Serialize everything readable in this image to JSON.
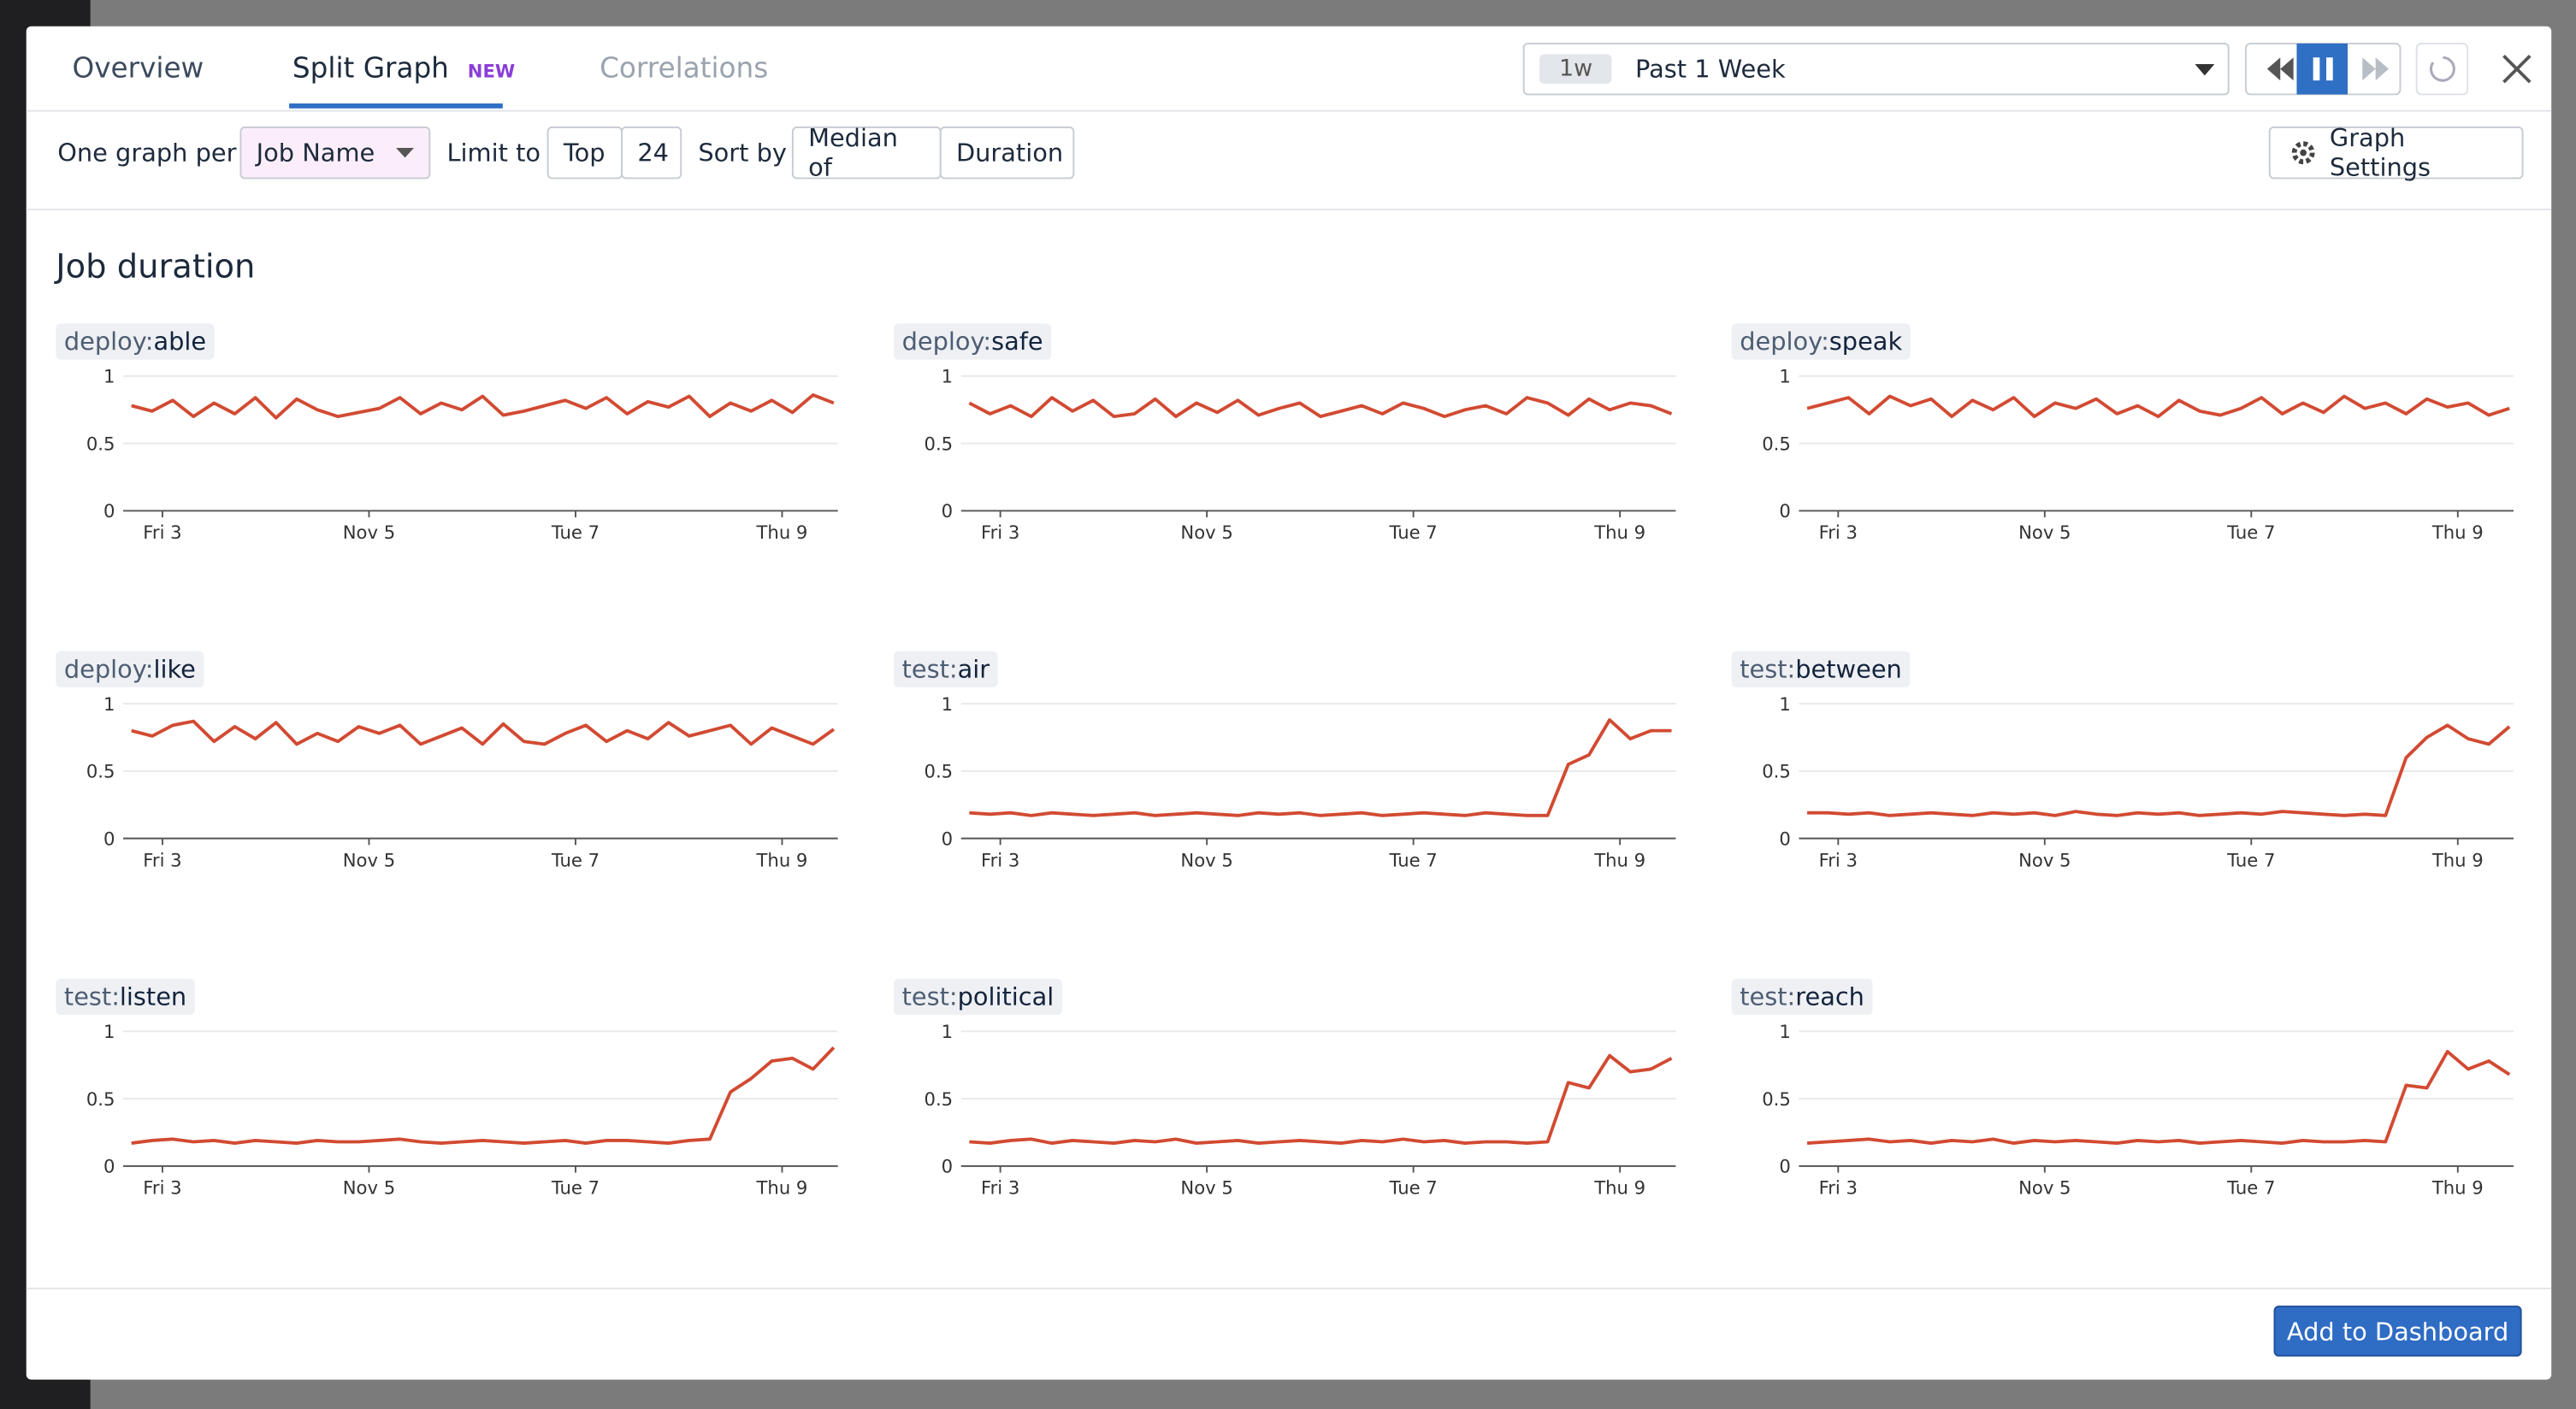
{
  "ui": {
    "tabs": [
      "Overview",
      "Split Graph",
      "Correlations"
    ],
    "badge": "NEW",
    "time_short": "1w",
    "time_label": "Past 1 Week",
    "group_label": "One graph per",
    "group_value": "Job Name",
    "limit_label": "Limit to",
    "limit_mode": "Top",
    "limit_value": "24",
    "sort_label": "Sort by",
    "sort_agg": "Median of",
    "sort_metric": "Duration",
    "settings": "Graph Settings",
    "section_title": "Job duration",
    "add_button": "Add to Dashboard"
  },
  "chart_data": [
    {
      "type": "line",
      "prefix": "deploy:",
      "title": "able",
      "color": "#d24a32",
      "x": [
        2.7,
        2.9,
        3.1,
        3.3,
        3.5,
        3.7,
        3.9,
        4.1,
        4.3,
        4.5,
        4.7,
        4.9,
        5.1,
        5.3,
        5.5,
        5.7,
        5.9,
        6.1,
        6.3,
        6.5,
        6.7,
        6.9,
        7.1,
        7.3,
        7.5,
        7.7,
        7.9,
        8.1,
        8.3,
        8.5,
        8.7,
        8.9,
        9.1,
        9.3,
        9.5
      ],
      "values": [
        0.78,
        0.74,
        0.82,
        0.7,
        0.8,
        0.72,
        0.84,
        0.69,
        0.83,
        0.75,
        0.7,
        0.73,
        0.76,
        0.84,
        0.72,
        0.8,
        0.75,
        0.85,
        0.71,
        0.74,
        0.78,
        0.82,
        0.76,
        0.84,
        0.72,
        0.81,
        0.77,
        0.85,
        0.7,
        0.8,
        0.74,
        0.82,
        0.73,
        0.86,
        0.8
      ],
      "xlim": [
        2.62,
        9.54
      ],
      "ylim": [
        0,
        1
      ],
      "xticks": [
        {
          "value": 3,
          "label": "Fri 3"
        },
        {
          "value": 5,
          "label": "Nov 5"
        },
        {
          "value": 7,
          "label": "Tue 7"
        },
        {
          "value": 9,
          "label": "Thu 9"
        }
      ],
      "yticks": [
        0,
        0.5,
        1
      ]
    },
    {
      "type": "line",
      "prefix": "deploy:",
      "title": "safe",
      "color": "#d24a32",
      "x": [
        2.7,
        2.9,
        3.1,
        3.3,
        3.5,
        3.7,
        3.9,
        4.1,
        4.3,
        4.5,
        4.7,
        4.9,
        5.1,
        5.3,
        5.5,
        5.7,
        5.9,
        6.1,
        6.3,
        6.5,
        6.7,
        6.9,
        7.1,
        7.3,
        7.5,
        7.7,
        7.9,
        8.1,
        8.3,
        8.5,
        8.7,
        8.9,
        9.1,
        9.3,
        9.5
      ],
      "values": [
        0.8,
        0.72,
        0.78,
        0.7,
        0.84,
        0.74,
        0.82,
        0.7,
        0.72,
        0.83,
        0.7,
        0.8,
        0.73,
        0.82,
        0.71,
        0.76,
        0.8,
        0.7,
        0.74,
        0.78,
        0.72,
        0.8,
        0.76,
        0.7,
        0.75,
        0.78,
        0.72,
        0.84,
        0.8,
        0.71,
        0.83,
        0.75,
        0.8,
        0.78,
        0.72
      ],
      "xlim": [
        2.62,
        9.54
      ],
      "ylim": [
        0,
        1
      ],
      "xticks": [
        {
          "value": 3,
          "label": "Fri 3"
        },
        {
          "value": 5,
          "label": "Nov 5"
        },
        {
          "value": 7,
          "label": "Tue 7"
        },
        {
          "value": 9,
          "label": "Thu 9"
        }
      ],
      "yticks": [
        0,
        0.5,
        1
      ]
    },
    {
      "type": "line",
      "prefix": "deploy:",
      "title": "speak",
      "color": "#d24a32",
      "x": [
        2.7,
        2.9,
        3.1,
        3.3,
        3.5,
        3.7,
        3.9,
        4.1,
        4.3,
        4.5,
        4.7,
        4.9,
        5.1,
        5.3,
        5.5,
        5.7,
        5.9,
        6.1,
        6.3,
        6.5,
        6.7,
        6.9,
        7.1,
        7.3,
        7.5,
        7.7,
        7.9,
        8.1,
        8.3,
        8.5,
        8.7,
        8.9,
        9.1,
        9.3,
        9.5
      ],
      "values": [
        0.76,
        0.8,
        0.84,
        0.72,
        0.85,
        0.78,
        0.83,
        0.7,
        0.82,
        0.75,
        0.84,
        0.7,
        0.8,
        0.76,
        0.83,
        0.72,
        0.78,
        0.7,
        0.82,
        0.74,
        0.71,
        0.76,
        0.84,
        0.72,
        0.8,
        0.73,
        0.85,
        0.76,
        0.8,
        0.72,
        0.83,
        0.77,
        0.8,
        0.71,
        0.76
      ],
      "xlim": [
        2.62,
        9.54
      ],
      "ylim": [
        0,
        1
      ],
      "xticks": [
        {
          "value": 3,
          "label": "Fri 3"
        },
        {
          "value": 5,
          "label": "Nov 5"
        },
        {
          "value": 7,
          "label": "Tue 7"
        },
        {
          "value": 9,
          "label": "Thu 9"
        }
      ],
      "yticks": [
        0,
        0.5,
        1
      ]
    },
    {
      "type": "line",
      "prefix": "deploy:",
      "title": "like",
      "color": "#d24a32",
      "x": [
        2.7,
        2.9,
        3.1,
        3.3,
        3.5,
        3.7,
        3.9,
        4.1,
        4.3,
        4.5,
        4.7,
        4.9,
        5.1,
        5.3,
        5.5,
        5.7,
        5.9,
        6.1,
        6.3,
        6.5,
        6.7,
        6.9,
        7.1,
        7.3,
        7.5,
        7.7,
        7.9,
        8.1,
        8.3,
        8.5,
        8.7,
        8.9,
        9.1,
        9.3,
        9.5
      ],
      "values": [
        0.8,
        0.76,
        0.84,
        0.87,
        0.72,
        0.83,
        0.74,
        0.86,
        0.7,
        0.78,
        0.72,
        0.83,
        0.78,
        0.84,
        0.7,
        0.76,
        0.82,
        0.7,
        0.85,
        0.72,
        0.7,
        0.78,
        0.84,
        0.72,
        0.8,
        0.74,
        0.86,
        0.76,
        0.8,
        0.84,
        0.7,
        0.82,
        0.76,
        0.7,
        0.81
      ],
      "xlim": [
        2.62,
        9.54
      ],
      "ylim": [
        0,
        1
      ],
      "xticks": [
        {
          "value": 3,
          "label": "Fri 3"
        },
        {
          "value": 5,
          "label": "Nov 5"
        },
        {
          "value": 7,
          "label": "Tue 7"
        },
        {
          "value": 9,
          "label": "Thu 9"
        }
      ],
      "yticks": [
        0,
        0.5,
        1
      ]
    },
    {
      "type": "line",
      "prefix": "test:",
      "title": "air",
      "color": "#d24a32",
      "x": [
        2.7,
        2.9,
        3.1,
        3.3,
        3.5,
        3.7,
        3.9,
        4.1,
        4.3,
        4.5,
        4.7,
        4.9,
        5.1,
        5.3,
        5.5,
        5.7,
        5.9,
        6.1,
        6.3,
        6.5,
        6.7,
        6.9,
        7.1,
        7.3,
        7.5,
        7.7,
        7.9,
        8.1,
        8.3,
        8.5,
        8.7,
        8.9,
        9.1,
        9.3,
        9.5
      ],
      "values": [
        0.19,
        0.18,
        0.19,
        0.17,
        0.19,
        0.18,
        0.17,
        0.18,
        0.19,
        0.17,
        0.18,
        0.19,
        0.18,
        0.17,
        0.19,
        0.18,
        0.19,
        0.17,
        0.18,
        0.19,
        0.17,
        0.18,
        0.19,
        0.18,
        0.17,
        0.19,
        0.18,
        0.17,
        0.17,
        0.55,
        0.62,
        0.88,
        0.74,
        0.8,
        0.8
      ],
      "xlim": [
        2.62,
        9.54
      ],
      "ylim": [
        0,
        1
      ],
      "xticks": [
        {
          "value": 3,
          "label": "Fri 3"
        },
        {
          "value": 5,
          "label": "Nov 5"
        },
        {
          "value": 7,
          "label": "Tue 7"
        },
        {
          "value": 9,
          "label": "Thu 9"
        }
      ],
      "yticks": [
        0,
        0.5,
        1
      ]
    },
    {
      "type": "line",
      "prefix": "test:",
      "title": "between",
      "color": "#d24a32",
      "x": [
        2.7,
        2.9,
        3.1,
        3.3,
        3.5,
        3.7,
        3.9,
        4.1,
        4.3,
        4.5,
        4.7,
        4.9,
        5.1,
        5.3,
        5.5,
        5.7,
        5.9,
        6.1,
        6.3,
        6.5,
        6.7,
        6.9,
        7.1,
        7.3,
        7.5,
        7.7,
        7.9,
        8.1,
        8.3,
        8.5,
        8.7,
        8.9,
        9.1,
        9.3,
        9.5
      ],
      "values": [
        0.19,
        0.19,
        0.18,
        0.19,
        0.17,
        0.18,
        0.19,
        0.18,
        0.17,
        0.19,
        0.18,
        0.19,
        0.17,
        0.2,
        0.18,
        0.17,
        0.19,
        0.18,
        0.19,
        0.17,
        0.18,
        0.19,
        0.18,
        0.2,
        0.19,
        0.18,
        0.17,
        0.18,
        0.17,
        0.6,
        0.75,
        0.84,
        0.74,
        0.7,
        0.83
      ],
      "xlim": [
        2.62,
        9.54
      ],
      "ylim": [
        0,
        1
      ],
      "xticks": [
        {
          "value": 3,
          "label": "Fri 3"
        },
        {
          "value": 5,
          "label": "Nov 5"
        },
        {
          "value": 7,
          "label": "Tue 7"
        },
        {
          "value": 9,
          "label": "Thu 9"
        }
      ],
      "yticks": [
        0,
        0.5,
        1
      ]
    },
    {
      "type": "line",
      "prefix": "test:",
      "title": "listen",
      "color": "#d24a32",
      "x": [
        2.7,
        2.9,
        3.1,
        3.3,
        3.5,
        3.7,
        3.9,
        4.1,
        4.3,
        4.5,
        4.7,
        4.9,
        5.1,
        5.3,
        5.5,
        5.7,
        5.9,
        6.1,
        6.3,
        6.5,
        6.7,
        6.9,
        7.1,
        7.3,
        7.5,
        7.7,
        7.9,
        8.1,
        8.3,
        8.5,
        8.7,
        8.9,
        9.1,
        9.3,
        9.5
      ],
      "values": [
        0.17,
        0.19,
        0.2,
        0.18,
        0.19,
        0.17,
        0.19,
        0.18,
        0.17,
        0.19,
        0.18,
        0.18,
        0.19,
        0.2,
        0.18,
        0.17,
        0.18,
        0.19,
        0.18,
        0.17,
        0.18,
        0.19,
        0.17,
        0.19,
        0.19,
        0.18,
        0.17,
        0.19,
        0.2,
        0.55,
        0.65,
        0.78,
        0.8,
        0.72,
        0.88
      ],
      "xlim": [
        2.62,
        9.54
      ],
      "ylim": [
        0,
        1
      ],
      "xticks": [
        {
          "value": 3,
          "label": "Fri 3"
        },
        {
          "value": 5,
          "label": "Nov 5"
        },
        {
          "value": 7,
          "label": "Tue 7"
        },
        {
          "value": 9,
          "label": "Thu 9"
        }
      ],
      "yticks": [
        0,
        0.5,
        1
      ]
    },
    {
      "type": "line",
      "prefix": "test:",
      "title": "political",
      "color": "#d24a32",
      "x": [
        2.7,
        2.9,
        3.1,
        3.3,
        3.5,
        3.7,
        3.9,
        4.1,
        4.3,
        4.5,
        4.7,
        4.9,
        5.1,
        5.3,
        5.5,
        5.7,
        5.9,
        6.1,
        6.3,
        6.5,
        6.7,
        6.9,
        7.1,
        7.3,
        7.5,
        7.7,
        7.9,
        8.1,
        8.3,
        8.5,
        8.7,
        8.9,
        9.1,
        9.3,
        9.5
      ],
      "values": [
        0.18,
        0.17,
        0.19,
        0.2,
        0.17,
        0.19,
        0.18,
        0.17,
        0.19,
        0.18,
        0.2,
        0.17,
        0.18,
        0.19,
        0.17,
        0.18,
        0.19,
        0.18,
        0.17,
        0.19,
        0.18,
        0.2,
        0.18,
        0.19,
        0.17,
        0.18,
        0.18,
        0.17,
        0.18,
        0.62,
        0.58,
        0.82,
        0.7,
        0.72,
        0.8
      ],
      "xlim": [
        2.62,
        9.54
      ],
      "ylim": [
        0,
        1
      ],
      "xticks": [
        {
          "value": 3,
          "label": "Fri 3"
        },
        {
          "value": 5,
          "label": "Nov 5"
        },
        {
          "value": 7,
          "label": "Tue 7"
        },
        {
          "value": 9,
          "label": "Thu 9"
        }
      ],
      "yticks": [
        0,
        0.5,
        1
      ]
    },
    {
      "type": "line",
      "prefix": "test:",
      "title": "reach",
      "color": "#d24a32",
      "x": [
        2.7,
        2.9,
        3.1,
        3.3,
        3.5,
        3.7,
        3.9,
        4.1,
        4.3,
        4.5,
        4.7,
        4.9,
        5.1,
        5.3,
        5.5,
        5.7,
        5.9,
        6.1,
        6.3,
        6.5,
        6.7,
        6.9,
        7.1,
        7.3,
        7.5,
        7.7,
        7.9,
        8.1,
        8.3,
        8.5,
        8.7,
        8.9,
        9.1,
        9.3,
        9.5
      ],
      "values": [
        0.17,
        0.18,
        0.19,
        0.2,
        0.18,
        0.19,
        0.17,
        0.19,
        0.18,
        0.2,
        0.17,
        0.19,
        0.18,
        0.19,
        0.18,
        0.17,
        0.19,
        0.18,
        0.19,
        0.17,
        0.18,
        0.19,
        0.18,
        0.17,
        0.19,
        0.18,
        0.18,
        0.19,
        0.18,
        0.6,
        0.58,
        0.85,
        0.72,
        0.78,
        0.68
      ],
      "xlim": [
        2.62,
        9.54
      ],
      "ylim": [
        0,
        1
      ],
      "xticks": [
        {
          "value": 3,
          "label": "Fri 3"
        },
        {
          "value": 5,
          "label": "Nov 5"
        },
        {
          "value": 7,
          "label": "Tue 7"
        },
        {
          "value": 9,
          "label": "Thu 9"
        }
      ],
      "yticks": [
        0,
        0.5,
        1
      ]
    }
  ]
}
